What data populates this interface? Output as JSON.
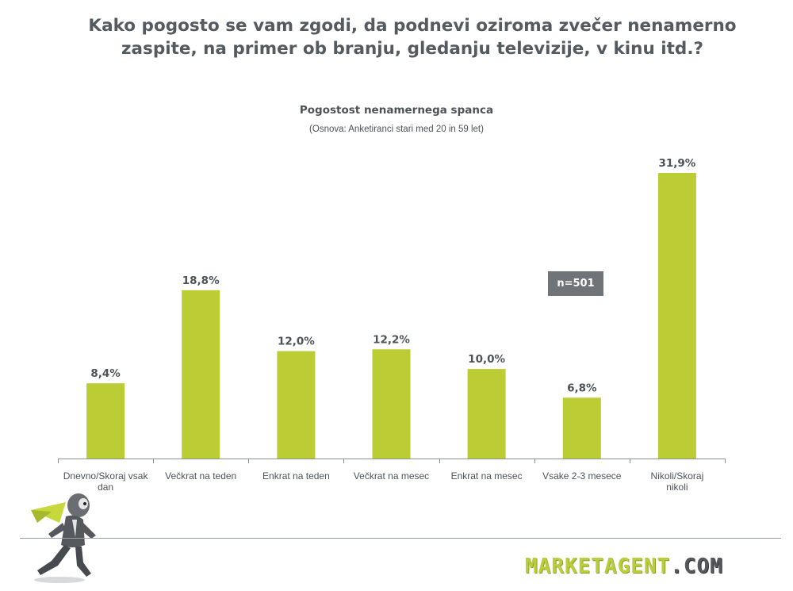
{
  "headline": "Kako pogosto se vam zgodi, da podnevi oziroma zvečer nenamerno zaspite, na primer ob branju, gledanju televizije, v kinu itd.?",
  "brand": {
    "logo_main": "MARKETAGENT",
    "logo_suffix": ".COM",
    "accent_color": "#bccc35",
    "badge_color": "#6f7479"
  },
  "chart_data": {
    "type": "bar",
    "title": "Pogostost nenamernega spanca",
    "subtitle": "(Osnova: Anketiranci stari med 20 in 59 let)",
    "annotation": "n=501",
    "categories": [
      "Dnevno/Skoraj vsak dan",
      "Večkrat na teden",
      "Enkrat na teden",
      "Večkrat na mesec",
      "Enkrat na mesec",
      "Vsake 2-3 mesece",
      "Nikoli/Skoraj nikoli"
    ],
    "values": [
      8.4,
      18.8,
      12.0,
      12.2,
      10.0,
      6.8,
      31.9
    ],
    "value_labels": [
      "8,4%",
      "18,8%",
      "12,0%",
      "12,2%",
      "10,0%",
      "6,8%",
      "31,9%"
    ],
    "ylim": [
      0,
      31.9
    ],
    "grid": false,
    "bar_color": "#bccc35"
  }
}
